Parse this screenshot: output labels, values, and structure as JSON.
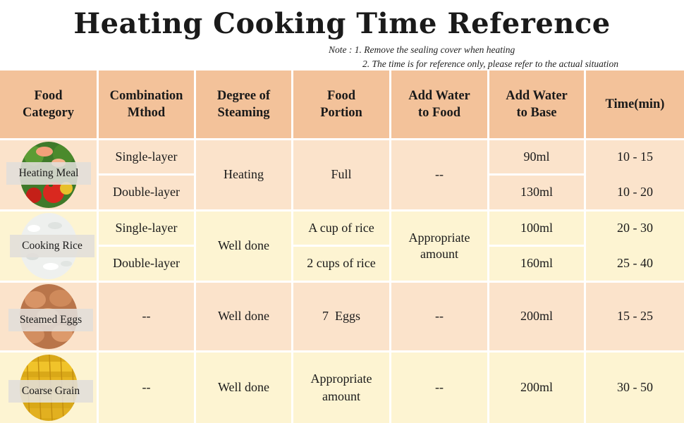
{
  "title": "Heating Cooking Time Reference",
  "note": {
    "line1": "Note :  1. Remove the sealing cover when heating",
    "line2": "2. The time is for reference only, please refer to the actual situation"
  },
  "table": {
    "headers": [
      "Food\nCategory",
      "Combination\nMthod",
      "Degree of\nSteaming",
      "Food\nPortion",
      "Add Water\nto Food",
      "Add Water\nto Base",
      "Time(min)"
    ],
    "groups": [
      {
        "category": "Heating Meal",
        "image_icon": "mixed-vegetables-icon",
        "method": [
          "Single-layer",
          "Double-layer"
        ],
        "degree": "Heating",
        "portion": "Full",
        "water_food": "--",
        "water_base": [
          "90ml",
          "130ml"
        ],
        "time": [
          "10 - 15",
          "10 - 20"
        ]
      },
      {
        "category": "Cooking Rice",
        "image_icon": "rice-icon",
        "method": [
          "Single-layer",
          "Double-layer"
        ],
        "degree": "Well done",
        "portion": [
          "A cup of rice",
          "2 cups of rice"
        ],
        "water_food": "Appropriate\namount",
        "water_base": [
          "100ml",
          "160ml"
        ],
        "time": [
          "20 - 30",
          "25 - 40"
        ]
      },
      {
        "category": "Steamed Eggs",
        "image_icon": "eggs-icon",
        "method": "--",
        "degree": "Well done",
        "portion": "7  Eggs",
        "water_food": "--",
        "water_base": "200ml",
        "time": "15 - 25"
      },
      {
        "category": "Coarse Grain",
        "image_icon": "corn-icon",
        "method": "--",
        "degree": "Well done",
        "portion": "Appropriate\namount",
        "water_food": "--",
        "water_base": "200ml",
        "time": "30 - 50"
      }
    ]
  },
  "colors": {
    "header_bg": "#f3c29a",
    "orange_row": "#fbe3cb",
    "yellow_row": "#fdf4d2",
    "grid_line": "#ffffff"
  }
}
